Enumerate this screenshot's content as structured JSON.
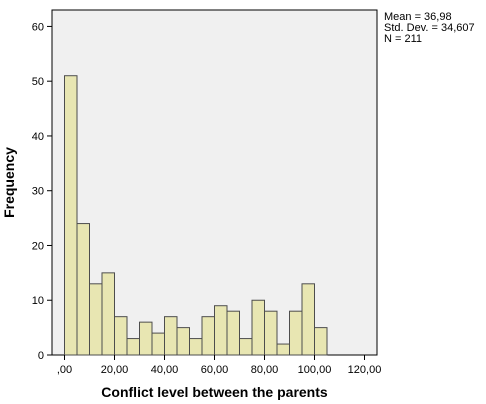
{
  "chart_data": {
    "type": "bar",
    "subtype": "histogram",
    "xlabel": "Conflict level between the parents",
    "ylabel": "Frequency",
    "bin_width": 5,
    "bin_starts": [
      0,
      5,
      10,
      15,
      20,
      25,
      30,
      35,
      40,
      45,
      50,
      55,
      60,
      65,
      70,
      75,
      80,
      85,
      90,
      95,
      100
    ],
    "values": [
      51,
      24,
      13,
      15,
      7,
      3,
      6,
      4,
      7,
      5,
      3,
      7,
      9,
      8,
      3,
      10,
      8,
      2,
      8,
      13,
      5
    ],
    "xlim": [
      -5,
      125
    ],
    "ylim": [
      0,
      63
    ],
    "x_ticks": [
      0,
      20,
      40,
      60,
      80,
      100,
      120
    ],
    "x_tick_labels": [
      ",00",
      "20,00",
      "40,00",
      "60,00",
      "80,00",
      "100,00",
      "120,00"
    ],
    "y_ticks": [
      0,
      10,
      20,
      30,
      40,
      50,
      60
    ],
    "y_tick_labels": [
      "0",
      "10",
      "20",
      "30",
      "40",
      "50",
      "60"
    ],
    "stats": [
      "Mean = 36,98",
      "Std. Dev. = 34,607",
      "N = 211"
    ],
    "grid": false,
    "colors": {
      "bar_fill": "#e8e6b2",
      "bar_stroke": "#4d4d4d",
      "plot_background": "#f0f0f0",
      "axis": "#000000"
    }
  }
}
